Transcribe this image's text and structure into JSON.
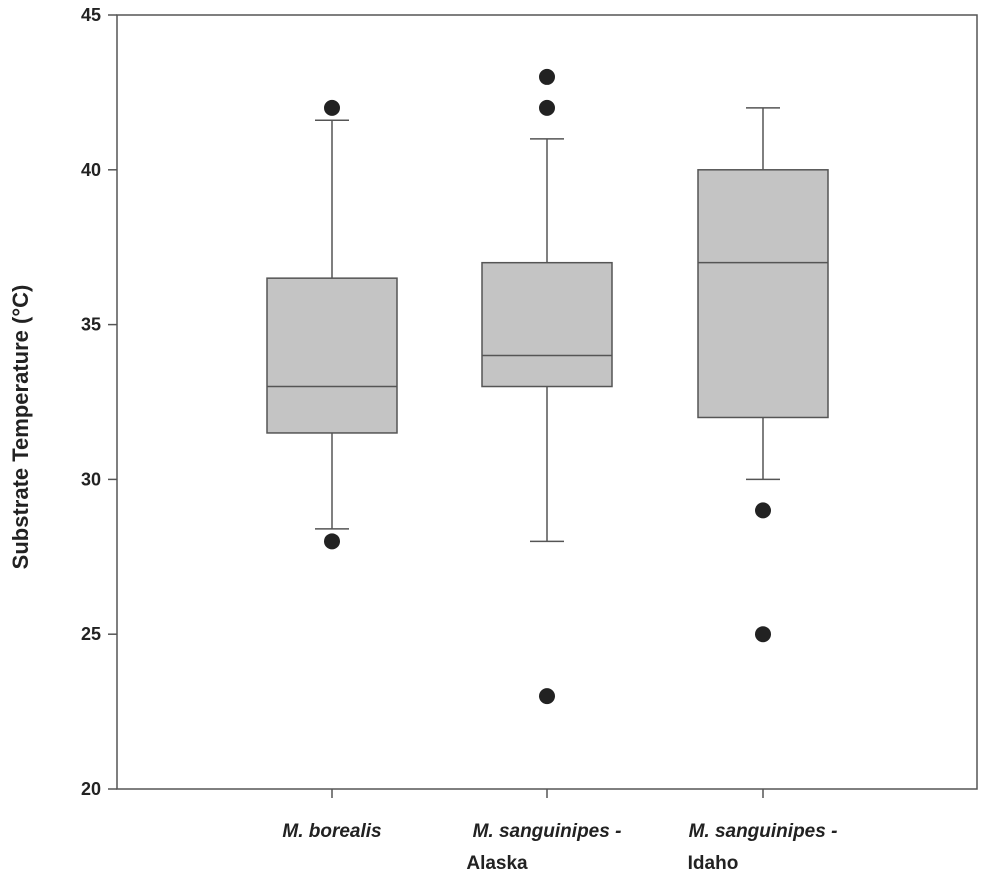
{
  "chart_data": {
    "type": "box",
    "title": "",
    "xlabel": "",
    "ylabel": "Substrate Temperature (°C)",
    "ylim": [
      20,
      45
    ],
    "yticks": [
      20,
      25,
      30,
      35,
      40,
      45
    ],
    "grid": false,
    "box_color": "#c4c4c4",
    "line_color": "#555555",
    "outlier_color": "#222222",
    "categories": [
      {
        "name": "M. borealis",
        "species": "M. borealis",
        "region": ""
      },
      {
        "name": "M. sanguinipes - Alaska",
        "species": "M. sanguinipes -",
        "region": "Alaska"
      },
      {
        "name": "M. sanguinipes - Idaho",
        "species": "M. sanguinipes -",
        "region": "Idaho"
      }
    ],
    "boxes": [
      {
        "whisker_low": 28.4,
        "q1": 31.5,
        "median": 33,
        "q3": 36.5,
        "whisker_high": 41.6,
        "outliers": [
          42,
          28
        ]
      },
      {
        "whisker_low": 28,
        "q1": 33,
        "median": 34,
        "q3": 37,
        "whisker_high": 41,
        "outliers": [
          43,
          42,
          23
        ]
      },
      {
        "whisker_low": 30,
        "q1": 32,
        "median": 37,
        "q3": 40,
        "whisker_high": 42,
        "outliers": [
          29,
          25
        ]
      }
    ]
  }
}
